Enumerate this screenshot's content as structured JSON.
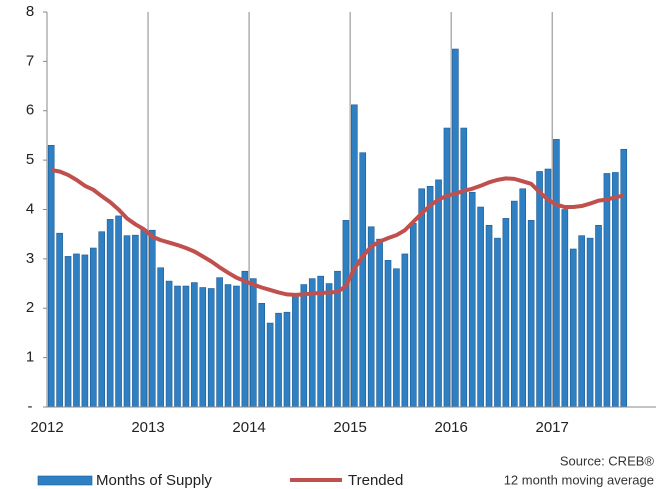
{
  "chart_data": {
    "type": "bar",
    "categories": [
      "2012",
      null,
      null,
      null,
      null,
      null,
      null,
      null,
      null,
      null,
      null,
      null,
      "2013",
      null,
      null,
      null,
      null,
      null,
      null,
      null,
      null,
      null,
      null,
      null,
      "2014",
      null,
      null,
      null,
      null,
      null,
      null,
      null,
      null,
      null,
      null,
      null,
      "2015",
      null,
      null,
      null,
      null,
      null,
      null,
      null,
      null,
      null,
      null,
      null,
      "2016",
      null,
      null,
      null,
      null,
      null,
      null,
      null,
      null,
      null,
      null,
      null,
      "2017",
      null,
      null,
      null,
      null,
      null,
      null,
      null,
      null
    ],
    "series": [
      {
        "name": "Months of Supply",
        "type": "bar",
        "color": "#2f80c3",
        "values": [
          5.3,
          3.52,
          3.05,
          3.1,
          3.08,
          3.22,
          3.55,
          3.8,
          3.87,
          3.47,
          3.48,
          3.6,
          3.58,
          2.82,
          2.55,
          2.45,
          2.45,
          2.52,
          2.42,
          2.4,
          2.62,
          2.48,
          2.45,
          2.75,
          2.6,
          2.1,
          1.7,
          1.9,
          1.92,
          2.28,
          2.48,
          2.6,
          2.65,
          2.5,
          2.75,
          3.78,
          6.12,
          5.15,
          3.65,
          3.4,
          2.97,
          2.8,
          3.1,
          3.72,
          4.42,
          4.47,
          4.6,
          5.65,
          7.25,
          5.65,
          4.35,
          4.05,
          3.68,
          3.42,
          3.82,
          4.17,
          4.42,
          3.78,
          4.77,
          4.82,
          5.42,
          4.0,
          3.2,
          3.47,
          3.42,
          3.68,
          4.73,
          4.75,
          5.22
        ]
      },
      {
        "name": "Trended",
        "type": "line",
        "color": "#c0504d",
        "values": [
          4.8,
          4.77,
          4.7,
          4.6,
          4.48,
          4.4,
          4.27,
          4.15,
          4.0,
          3.82,
          3.7,
          3.6,
          3.45,
          3.38,
          3.33,
          3.28,
          3.22,
          3.15,
          3.05,
          2.95,
          2.83,
          2.72,
          2.62,
          2.55,
          2.48,
          2.42,
          2.37,
          2.32,
          2.28,
          2.27,
          2.28,
          2.3,
          2.31,
          2.32,
          2.33,
          2.45,
          2.8,
          3.05,
          3.25,
          3.35,
          3.42,
          3.48,
          3.58,
          3.75,
          3.92,
          4.08,
          4.2,
          4.28,
          4.32,
          4.38,
          4.42,
          4.48,
          4.55,
          4.6,
          4.63,
          4.62,
          4.57,
          4.52,
          4.35,
          4.2,
          4.1,
          4.05,
          4.05,
          4.07,
          4.12,
          4.18,
          4.2,
          4.25,
          4.28
        ]
      }
    ],
    "ylim": [
      0,
      8
    ],
    "yticks": [
      {
        "value": 0,
        "label": "-"
      },
      1,
      2,
      3,
      4,
      5,
      6,
      7,
      8
    ],
    "notes": [
      "Source: CREB®",
      "12 month moving average"
    ]
  }
}
